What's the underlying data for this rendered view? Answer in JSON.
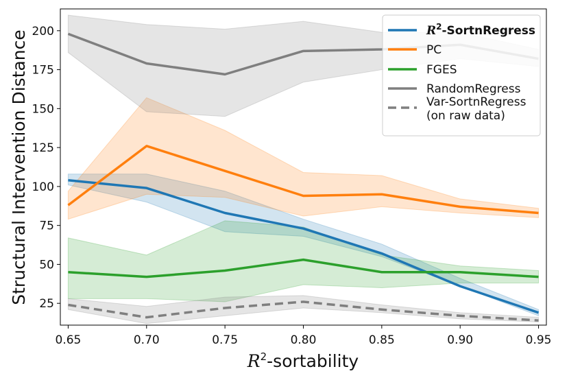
{
  "chart_data": {
    "type": "line",
    "xlabel": "R²-sortability",
    "ylabel": "Structural Intervention Distance",
    "x": [
      0.65,
      0.7,
      0.75,
      0.8,
      0.85,
      0.9,
      0.95
    ],
    "xticks": [
      "0.65",
      "0.70",
      "0.75",
      "0.80",
      "0.85",
      "0.90",
      "0.95"
    ],
    "yticks": [
      "25",
      "50",
      "75",
      "100",
      "125",
      "150",
      "175",
      "200"
    ],
    "xlim": [
      0.645,
      0.955
    ],
    "ylim": [
      11,
      214
    ],
    "legend_position": "top-right",
    "series": [
      {
        "name": "R²-SortnRegress",
        "color": "#1f77b4",
        "dash": false,
        "bold": true,
        "values": [
          104,
          99,
          83,
          73,
          57,
          36,
          19
        ],
        "lower": [
          101,
          90,
          71,
          68,
          55,
          36,
          17
        ],
        "upper": [
          108,
          108,
          97,
          79,
          63,
          41,
          21
        ]
      },
      {
        "name": "PC",
        "color": "#ff7f0e",
        "dash": false,
        "bold": false,
        "values": [
          88,
          126,
          110,
          94,
          95,
          87,
          83
        ],
        "lower": [
          79,
          95,
          93,
          81,
          87,
          83,
          80
        ],
        "upper": [
          97,
          157,
          136,
          109,
          107,
          92,
          86
        ]
      },
      {
        "name": "FGES",
        "color": "#2ca02c",
        "dash": false,
        "bold": false,
        "values": [
          45,
          42,
          46,
          53,
          45,
          45,
          42
        ],
        "lower": [
          28,
          28,
          26,
          37,
          35,
          38,
          38
        ],
        "upper": [
          67,
          56,
          78,
          74,
          56,
          49,
          46
        ]
      },
      {
        "name": "RandomRegress",
        "color": "#7f7f7f",
        "dash": false,
        "bold": false,
        "values": [
          198,
          179,
          172,
          187,
          188,
          191,
          182
        ],
        "lower": [
          186,
          148,
          145,
          167,
          175,
          182,
          177
        ],
        "upper": [
          210,
          204,
          201,
          206,
          199,
          199,
          188
        ]
      },
      {
        "name": "Var-SortnRegress (on raw data)",
        "label_lines": [
          "Var-SortnRegress",
          "(on raw data)"
        ],
        "color": "#7f7f7f",
        "dash": true,
        "bold": false,
        "values": [
          24,
          16,
          22,
          26,
          21,
          17,
          14
        ],
        "lower": [
          21,
          12,
          17,
          22,
          19,
          15,
          13
        ],
        "upper": [
          28,
          23,
          29,
          30,
          24,
          19,
          16
        ]
      }
    ]
  }
}
